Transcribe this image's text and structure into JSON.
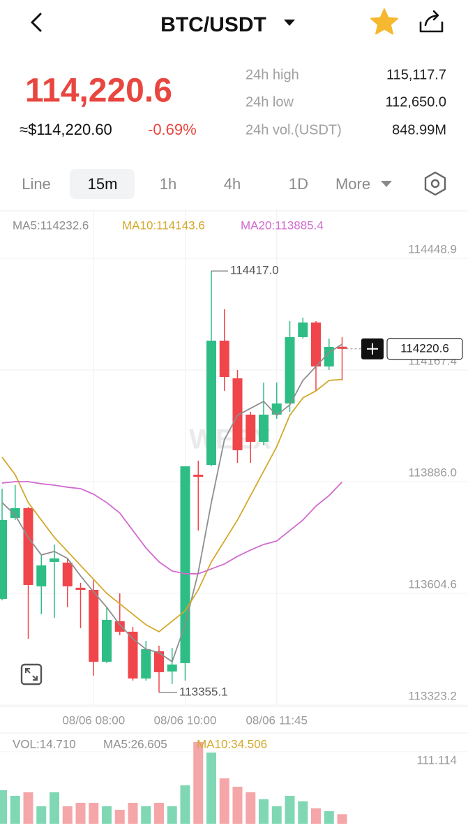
{
  "header": {
    "pair": "BTC/USDT"
  },
  "ticker": {
    "price": "114,220.6",
    "fiat": "≈$114,220.60",
    "change": "-0.69%",
    "stats": [
      {
        "label": "24h high",
        "value": "115,117.7"
      },
      {
        "label": "24h low",
        "value": "112,650.0"
      },
      {
        "label": "24h vol.(USDT)",
        "value": "848.99M"
      }
    ]
  },
  "tabs": [
    "Line",
    "15m",
    "1h",
    "4h",
    "1D",
    "More"
  ],
  "chart_data": {
    "type": "candlestick",
    "watermark": "WEEX",
    "categories": [
      null,
      null,
      null,
      null,
      null,
      null,
      null,
      "08/06 08:00",
      null,
      null,
      null,
      null,
      null,
      null,
      "08/06 10:00",
      null,
      null,
      null,
      null,
      null,
      null,
      "08/06 11:45",
      null,
      null,
      null,
      null,
      null
    ],
    "open": [
      113590.7,
      113794.7,
      113819.3,
      113622.3,
      113683.9,
      113682.1,
      113618.8,
      113613.5,
      113432.4,
      113534.4,
      113508.0,
      113390.2,
      113458.8,
      113407.8,
      113428.9,
      113903.7,
      113928.3,
      114241.4,
      114146.4,
      114055.0,
      113986.4,
      114055.0,
      114083.1,
      114250.2,
      114287.1,
      114176.3,
      114226.0
    ],
    "high": [
      113868.5,
      113877.3,
      113822.6,
      113701.5,
      113727.8,
      113692.7,
      113631.1,
      113639.9,
      113569.6,
      113604.7,
      113520.3,
      113485.1,
      113472.8,
      113467.5,
      113924.8,
      113938.9,
      114417.0,
      114320.5,
      114167.5,
      114062.0,
      114135.9,
      114135.9,
      114290.6,
      114299.4,
      114290.6,
      114246.7,
      114250.2
    ],
    "low": [
      113587.1,
      113789.4,
      113490.4,
      113552.0,
      113543.2,
      113569.6,
      113516.8,
      113397.2,
      113428.9,
      113499.2,
      113384.9,
      113384.9,
      113355.1,
      113376.1,
      113384.9,
      113763.0,
      113924.8,
      114114.8,
      113933.6,
      113933.6,
      113977.6,
      114044.4,
      114062.0,
      114246.7,
      114114.8,
      114167.5,
      114141.1
    ],
    "close": [
      113789.4,
      113819.3,
      113625.8,
      113675.1,
      113692.7,
      113622.3,
      113613.5,
      113432.4,
      113537.9,
      113508.0,
      113390.2,
      113464.0,
      113406.0,
      113425.4,
      113924.8,
      113898.4,
      114241.4,
      114149.9,
      113965.3,
      113986.4,
      114055.0,
      114083.1,
      114250.2,
      114287.1,
      114176.3,
      114225.6,
      114220.6
    ],
    "up_color": "#2ebd85",
    "down_color": "#f0454a",
    "ylim": [
      113323.2,
      114572.0
    ],
    "yticks": [
      114448.9,
      114167.4,
      {
        "value": 113886.0,
        "label": "113886.0"
      },
      113604.6,
      113323.2
    ],
    "grid": true,
    "max_label": "114417.0",
    "min_label": "113355.1",
    "last_label": "114220.6",
    "series": [
      {
        "label": "MA5:114232.6",
        "color": "#8e8e8e",
        "values": [
          113833.4,
          113801.7,
          113745.4,
          113701.5,
          113710.3,
          113692.7,
          113648.7,
          113608.3,
          113569.6,
          113525.6,
          113490.4,
          113464.0,
          113455.2,
          113432.4,
          113525.6,
          113657.5,
          113833.4,
          113991.7,
          114053.2,
          114070.8,
          114088.4,
          114053.2,
          114079.6,
          114141.1,
          114176.3,
          114211.5,
          114232.6
        ]
      },
      {
        "label": "MA10:114143.6",
        "color": "#d4a82a",
        "values": [
          113947.7,
          113903.7,
          113833.4,
          113789.4,
          113745.4,
          113710.3,
          113675.1,
          113639.9,
          113604.7,
          113578.4,
          113552.0,
          113525.6,
          113508.0,
          113534.4,
          113560.8,
          113613.5,
          113683.9,
          113736.6,
          113789.4,
          113851.0,
          113912.5,
          113974.1,
          114053.2,
          114097.2,
          114114.8,
          114141.1,
          114143.6
        ]
      },
      {
        "label": "MA20:113885.4",
        "color": "#d26bd0",
        "values": [
          113882.6,
          113886.1,
          113886.1,
          113880.9,
          113877.3,
          113872.1,
          113868.5,
          113854.5,
          113833.4,
          113807.0,
          113763.0,
          113719.1,
          113683.9,
          113661.0,
          113654.0,
          113654.0,
          113666.3,
          113678.6,
          113697.9,
          113713.8,
          113727.8,
          113736.6,
          113763.0,
          113789.4,
          113824.6,
          113851.0,
          113885.4
        ]
      }
    ],
    "volume": {
      "legend": [
        "VOL:14.710",
        "MA5:26.605",
        "MA10:34.506"
      ],
      "legend_colors": [
        "#8e8e8e",
        "#8e8e8e",
        "#d4a82a"
      ],
      "values": [
        51.7,
        43.1,
        48.5,
        26.9,
        48.5,
        26.9,
        32.3,
        32.3,
        26.9,
        21.5,
        32.3,
        26.9,
        32.3,
        26.9,
        59.2,
        126.0,
        109.8,
        70.0,
        57.1,
        48.5,
        37.7,
        26.9,
        43.1,
        34.5,
        23.7,
        19.4,
        14.71
      ],
      "up_color": "#7fd8b3",
      "down_color": "#f5a6a8",
      "ylim": [
        0,
        140
      ],
      "yticks": [
        111.114
      ]
    }
  }
}
